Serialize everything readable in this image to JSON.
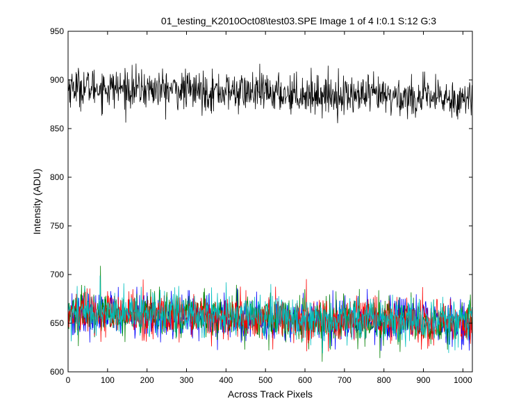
{
  "chart_data": {
    "type": "line",
    "title": "01_testing_K2010Oct08\\test03.SPE  Image 1 of 4  I:0.1  S:12  G:3",
    "xlabel": "Across Track Pixels",
    "ylabel": "Intensity (ADU)",
    "xlim": [
      0,
      1024
    ],
    "ylim": [
      600,
      950
    ],
    "xticks": [
      0,
      100,
      200,
      300,
      400,
      500,
      600,
      700,
      800,
      900,
      1000
    ],
    "yticks": [
      600,
      650,
      700,
      750,
      800,
      850,
      900,
      950
    ],
    "grid": false,
    "legend": "none",
    "n_points": 1024,
    "series": [
      {
        "color": "#000000",
        "mean_start": 893,
        "mean_end": 880,
        "noise_sd": 10
      },
      {
        "color": "#0000ff",
        "mean_start": 660,
        "mean_end": 650,
        "noise_sd": 11
      },
      {
        "color": "#008000",
        "mean_start": 661,
        "mean_end": 650,
        "noise_sd": 11
      },
      {
        "color": "#ff0000",
        "mean_start": 660,
        "mean_end": 649,
        "noise_sd": 11
      },
      {
        "color": "#00bfbf",
        "mean_start": 662,
        "mean_end": 652,
        "noise_sd": 11
      }
    ]
  }
}
